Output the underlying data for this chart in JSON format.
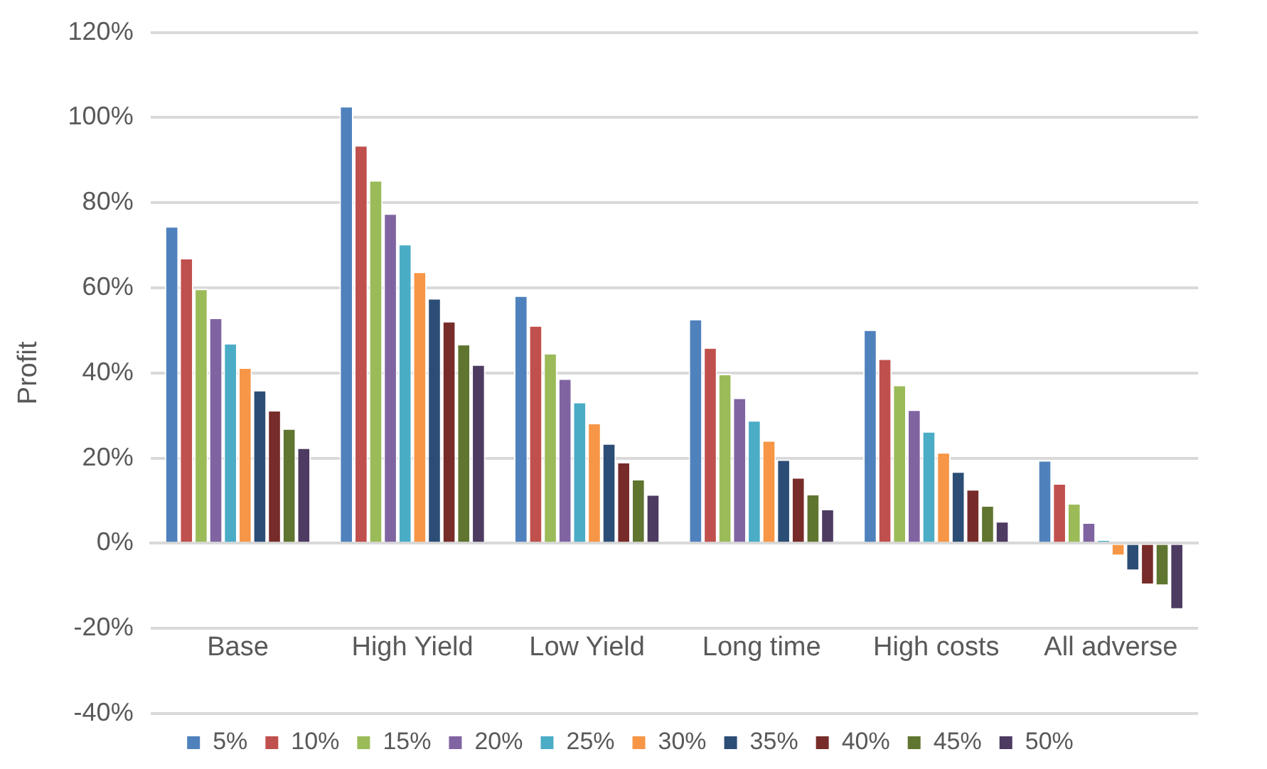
{
  "chart_data": {
    "type": "bar",
    "ylabel": "Profit",
    "categories": [
      "Base",
      "High Yield",
      "Low Yield",
      "Long time",
      "High costs",
      "All adverse"
    ],
    "ylim": [
      -40,
      120
    ],
    "yticks": [
      {
        "value": -40,
        "label": "-40%"
      },
      {
        "value": -20,
        "label": "-20%"
      },
      {
        "value": 0,
        "label": "0%"
      },
      {
        "value": 20,
        "label": "20%"
      },
      {
        "value": 40,
        "label": "40%"
      },
      {
        "value": 60,
        "label": "60%"
      },
      {
        "value": 80,
        "label": "80%"
      },
      {
        "value": 100,
        "label": "100%"
      },
      {
        "value": 120,
        "label": "120%"
      }
    ],
    "grid": "y",
    "legend": "bottom",
    "series": [
      {
        "name": "5%",
        "color": "#4f81bd",
        "values": [
          74.5,
          102.7,
          58.2,
          52.7,
          50.2,
          19.5
        ]
      },
      {
        "name": "10%",
        "color": "#c0504d",
        "values": [
          67,
          93.5,
          51.2,
          46,
          43.4,
          14.1
        ]
      },
      {
        "name": "15%",
        "color": "#9bbb59",
        "values": [
          59.8,
          85.3,
          44.7,
          39.8,
          37.2,
          9.4
        ]
      },
      {
        "name": "20%",
        "color": "#8064a2",
        "values": [
          53,
          77.5,
          38.7,
          34.2,
          31.4,
          4.9
        ]
      },
      {
        "name": "25%",
        "color": "#4bacc6",
        "values": [
          47,
          70.3,
          33.2,
          28.9,
          26.3,
          0.8
        ]
      },
      {
        "name": "30%",
        "color": "#f79646",
        "values": [
          41.3,
          63.8,
          28.3,
          24.2,
          21.4,
          -3
        ]
      },
      {
        "name": "35%",
        "color": "#2c4d75",
        "values": [
          36,
          57.6,
          23.5,
          19.7,
          16.9,
          -6.5
        ]
      },
      {
        "name": "40%",
        "color": "#772c2a",
        "values": [
          31.3,
          52.2,
          19.1,
          15.5,
          12.7,
          -9.8
        ]
      },
      {
        "name": "45%",
        "color": "#5f7530",
        "values": [
          27,
          46.8,
          15.1,
          11.6,
          8.9,
          -10
        ]
      },
      {
        "name": "50%",
        "color": "#4d3b62",
        "values": [
          22.5,
          42,
          11.5,
          8.1,
          5.2,
          -15.6
        ]
      }
    ]
  }
}
